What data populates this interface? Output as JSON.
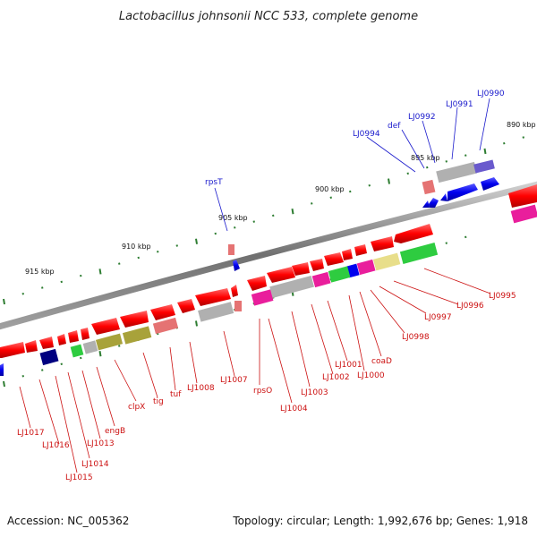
{
  "title": "Lactobacillus johnsonii NCC 533, complete genome",
  "footer": {
    "accession": "Accession: NC_005362",
    "topology": "Topology: circular; Length: 1,992,676 bp; Genes: 1,918"
  },
  "scale": {
    "ticks": [
      "890 kbp",
      "895 kbp",
      "900 kbp",
      "905 kbp",
      "910 kbp",
      "915 kbp"
    ]
  },
  "genes_forward": [
    "LJ0990",
    "LJ0991",
    "LJ0992",
    "def",
    "LJ0994",
    "rpsT"
  ],
  "genes_reverse": [
    "LJ0995",
    "LJ0996",
    "LJ0997",
    "LJ0998",
    "coaD",
    "LJ1000",
    "LJ1001",
    "LJ1002",
    "LJ1003",
    "LJ1004",
    "rpsO",
    "LJ1007",
    "LJ1008",
    "tuf",
    "tig",
    "clpX",
    "engB",
    "LJ1013",
    "LJ1014",
    "LJ1015",
    "LJ1016",
    "LJ1017"
  ],
  "colors": {
    "forward_strand": "#0000ee",
    "reverse_strand": "#ee0000",
    "backbone": "#808080",
    "tick": "#2e7d32",
    "magenta": "#e91e9c",
    "green": "#2ecc40",
    "olive": "#a8a23a",
    "grey": "#b0b0b0",
    "navy": "#000080",
    "yellow": "#e8de8a",
    "purple": "#6a5acd",
    "salmon": "#e57373"
  }
}
